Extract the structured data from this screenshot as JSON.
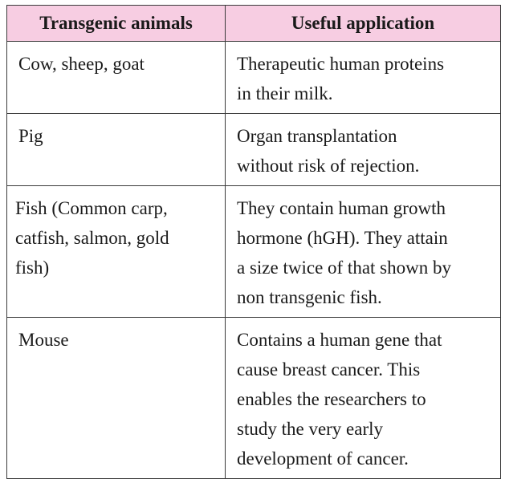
{
  "table": {
    "headers": {
      "animal": "Transgenic animals",
      "application": "Useful application"
    },
    "rows": [
      {
        "animal": "Cow, sheep, goat",
        "application": "Therapeutic human proteins\nin their milk."
      },
      {
        "animal": "Pig",
        "application": "Organ transplantation\nwithout risk of rejection."
      },
      {
        "animal": "Fish (Common carp,\ncatfish,  salmon, gold\nfish)",
        "application": "They contain human growth\nhormone (hGH). They attain\na size twice of that shown by\nnon transgenic fish."
      },
      {
        "animal": "Mouse",
        "application": "Contains a human gene that\ncause breast cancer. This\nenables the researchers to\nstudy the very early\ndevelopment of cancer."
      }
    ]
  },
  "colors": {
    "header_background": "#f7cde2",
    "border": "#3a3a3a"
  }
}
